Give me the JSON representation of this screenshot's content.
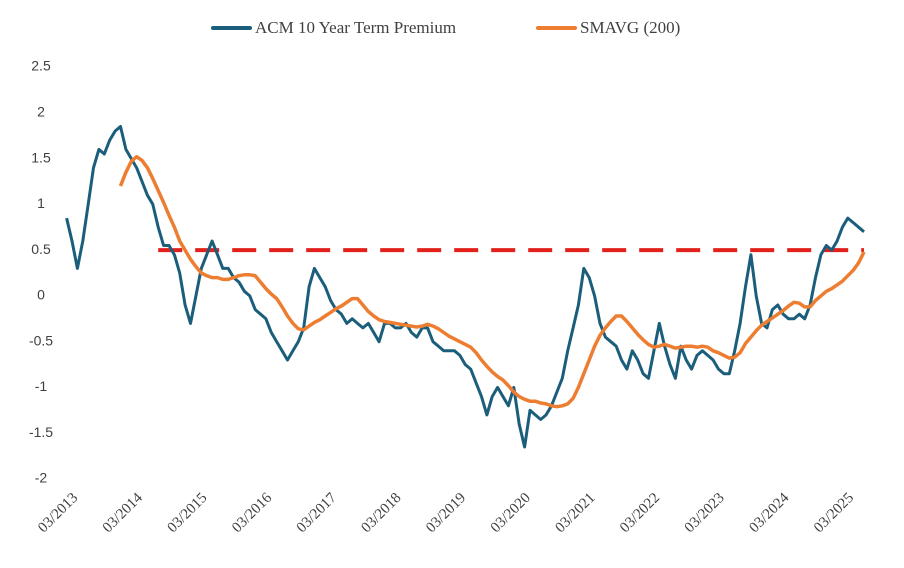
{
  "chart_data": {
    "type": "line",
    "x": [
      "02/2013",
      "03/2013",
      "04/2013",
      "05/2013",
      "06/2013",
      "07/2013",
      "08/2013",
      "09/2013",
      "10/2013",
      "11/2013",
      "12/2013",
      "01/2014",
      "02/2014",
      "03/2014",
      "04/2014",
      "05/2014",
      "06/2014",
      "07/2014",
      "08/2014",
      "09/2014",
      "10/2014",
      "11/2014",
      "12/2014",
      "01/2015",
      "02/2015",
      "03/2015",
      "04/2015",
      "05/2015",
      "06/2015",
      "07/2015",
      "08/2015",
      "09/2015",
      "10/2015",
      "11/2015",
      "12/2015",
      "01/2016",
      "02/2016",
      "03/2016",
      "04/2016",
      "05/2016",
      "06/2016",
      "07/2016",
      "08/2016",
      "09/2016",
      "10/2016",
      "11/2016",
      "12/2016",
      "01/2017",
      "02/2017",
      "03/2017",
      "04/2017",
      "05/2017",
      "06/2017",
      "07/2017",
      "08/2017",
      "09/2017",
      "10/2017",
      "11/2017",
      "12/2017",
      "01/2018",
      "02/2018",
      "03/2018",
      "04/2018",
      "05/2018",
      "06/2018",
      "07/2018",
      "08/2018",
      "09/2018",
      "10/2018",
      "11/2018",
      "12/2018",
      "01/2019",
      "02/2019",
      "03/2019",
      "04/2019",
      "05/2019",
      "06/2019",
      "07/2019",
      "08/2019",
      "09/2019",
      "10/2019",
      "11/2019",
      "12/2019",
      "01/2020",
      "02/2020",
      "03/2020",
      "04/2020",
      "05/2020",
      "06/2020",
      "07/2020",
      "08/2020",
      "09/2020",
      "10/2020",
      "11/2020",
      "12/2020",
      "01/2021",
      "02/2021",
      "03/2021",
      "04/2021",
      "05/2021",
      "06/2021",
      "07/2021",
      "08/2021",
      "09/2021",
      "10/2021",
      "11/2021",
      "12/2021",
      "01/2022",
      "02/2022",
      "03/2022",
      "04/2022",
      "05/2022",
      "06/2022",
      "07/2022",
      "08/2022",
      "09/2022",
      "10/2022",
      "11/2022",
      "12/2022",
      "01/2023",
      "02/2023",
      "03/2023",
      "04/2023",
      "05/2023",
      "06/2023",
      "07/2023",
      "08/2023",
      "09/2023",
      "10/2023",
      "11/2023",
      "12/2023",
      "01/2024",
      "02/2024",
      "03/2024",
      "04/2024",
      "05/2024",
      "06/2024",
      "07/2024",
      "08/2024",
      "09/2024",
      "10/2024",
      "11/2024",
      "12/2024",
      "01/2025",
      "02/2025",
      "03/2025",
      "04/2025",
      "05/2025",
      "06/2025"
    ],
    "series": [
      {
        "name": "ACM 10 Year Term Premium",
        "color": "#1b5e7b",
        "values": [
          0.85,
          0.6,
          0.3,
          0.6,
          1.0,
          1.4,
          1.6,
          1.55,
          1.7,
          1.8,
          1.85,
          1.6,
          1.5,
          1.4,
          1.25,
          1.1,
          1.0,
          0.75,
          0.55,
          0.55,
          0.45,
          0.25,
          -0.1,
          -0.3,
          0.0,
          0.3,
          0.45,
          0.6,
          0.45,
          0.3,
          0.3,
          0.2,
          0.15,
          0.05,
          0.0,
          -0.15,
          -0.2,
          -0.25,
          -0.4,
          -0.5,
          -0.6,
          -0.7,
          -0.6,
          -0.5,
          -0.35,
          0.1,
          0.3,
          0.2,
          0.1,
          -0.05,
          -0.15,
          -0.2,
          -0.3,
          -0.25,
          -0.3,
          -0.35,
          -0.3,
          -0.4,
          -0.5,
          -0.3,
          -0.3,
          -0.35,
          -0.35,
          -0.3,
          -0.4,
          -0.45,
          -0.35,
          -0.35,
          -0.5,
          -0.55,
          -0.6,
          -0.6,
          -0.6,
          -0.65,
          -0.75,
          -0.8,
          -0.95,
          -1.1,
          -1.3,
          -1.1,
          -1.0,
          -1.1,
          -1.2,
          -1.0,
          -1.4,
          -1.65,
          -1.25,
          -1.3,
          -1.35,
          -1.3,
          -1.2,
          -1.05,
          -0.9,
          -0.6,
          -0.35,
          -0.1,
          0.3,
          0.2,
          0.0,
          -0.3,
          -0.45,
          -0.5,
          -0.55,
          -0.7,
          -0.8,
          -0.6,
          -0.7,
          -0.85,
          -0.9,
          -0.6,
          -0.3,
          -0.55,
          -0.75,
          -0.9,
          -0.55,
          -0.7,
          -0.8,
          -0.65,
          -0.6,
          -0.65,
          -0.7,
          -0.8,
          -0.85,
          -0.85,
          -0.6,
          -0.3,
          0.1,
          0.45,
          0.0,
          -0.3,
          -0.35,
          -0.15,
          -0.1,
          -0.2,
          -0.25,
          -0.25,
          -0.2,
          -0.25,
          -0.1,
          0.2,
          0.45,
          0.55,
          0.5,
          0.6,
          0.75,
          0.85,
          0.8,
          0.75,
          0.7
        ]
      },
      {
        "name": "SMAVG (200)",
        "color": "#ed7d31",
        "values": [
          null,
          null,
          null,
          null,
          null,
          null,
          null,
          null,
          null,
          null,
          1.2,
          1.35,
          1.47,
          1.52,
          1.48,
          1.4,
          1.28,
          1.15,
          1.02,
          0.88,
          0.75,
          0.6,
          0.5,
          0.4,
          0.32,
          0.25,
          0.22,
          0.2,
          0.2,
          0.18,
          0.18,
          0.2,
          0.22,
          0.23,
          0.23,
          0.22,
          0.15,
          0.08,
          0.02,
          -0.03,
          -0.12,
          -0.22,
          -0.3,
          -0.36,
          -0.37,
          -0.33,
          -0.29,
          -0.26,
          -0.22,
          -0.18,
          -0.14,
          -0.11,
          -0.07,
          -0.03,
          -0.03,
          -0.1,
          -0.17,
          -0.22,
          -0.26,
          -0.28,
          -0.29,
          -0.3,
          -0.31,
          -0.32,
          -0.33,
          -0.34,
          -0.33,
          -0.31,
          -0.33,
          -0.36,
          -0.4,
          -0.44,
          -0.47,
          -0.5,
          -0.53,
          -0.56,
          -0.62,
          -0.7,
          -0.77,
          -0.83,
          -0.88,
          -0.92,
          -0.98,
          -1.05,
          -1.1,
          -1.13,
          -1.15,
          -1.15,
          -1.17,
          -1.18,
          -1.2,
          -1.21,
          -1.2,
          -1.18,
          -1.12,
          -1.0,
          -0.85,
          -0.7,
          -0.55,
          -0.43,
          -0.35,
          -0.28,
          -0.22,
          -0.22,
          -0.28,
          -0.35,
          -0.42,
          -0.48,
          -0.53,
          -0.56,
          -0.55,
          -0.53,
          -0.55,
          -0.57,
          -0.56,
          -0.55,
          -0.55,
          -0.56,
          -0.55,
          -0.56,
          -0.6,
          -0.62,
          -0.65,
          -0.68,
          -0.67,
          -0.62,
          -0.52,
          -0.45,
          -0.38,
          -0.32,
          -0.28,
          -0.24,
          -0.2,
          -0.16,
          -0.11,
          -0.07,
          -0.08,
          -0.12,
          -0.12,
          -0.05,
          0.0,
          0.05,
          0.08,
          0.12,
          0.16,
          0.22,
          0.28,
          0.36,
          0.48
        ]
      }
    ],
    "reference_line": {
      "value": 0.5,
      "from": "07/2014",
      "to": "06/2025",
      "color": "#e3211c",
      "dashed": true
    },
    "xlim": [
      "02/2013",
      "06/2025"
    ],
    "xticks": [
      "03/2013",
      "03/2014",
      "03/2015",
      "03/2016",
      "03/2017",
      "03/2018",
      "03/2019",
      "03/2020",
      "03/2021",
      "03/2022",
      "03/2023",
      "03/2024",
      "03/2025"
    ],
    "ylim": [
      -2,
      2.5
    ],
    "yticks": [
      -2,
      -1.5,
      -1,
      -0.5,
      0,
      0.5,
      1,
      1.5,
      2,
      2.5
    ],
    "legend": "top"
  }
}
